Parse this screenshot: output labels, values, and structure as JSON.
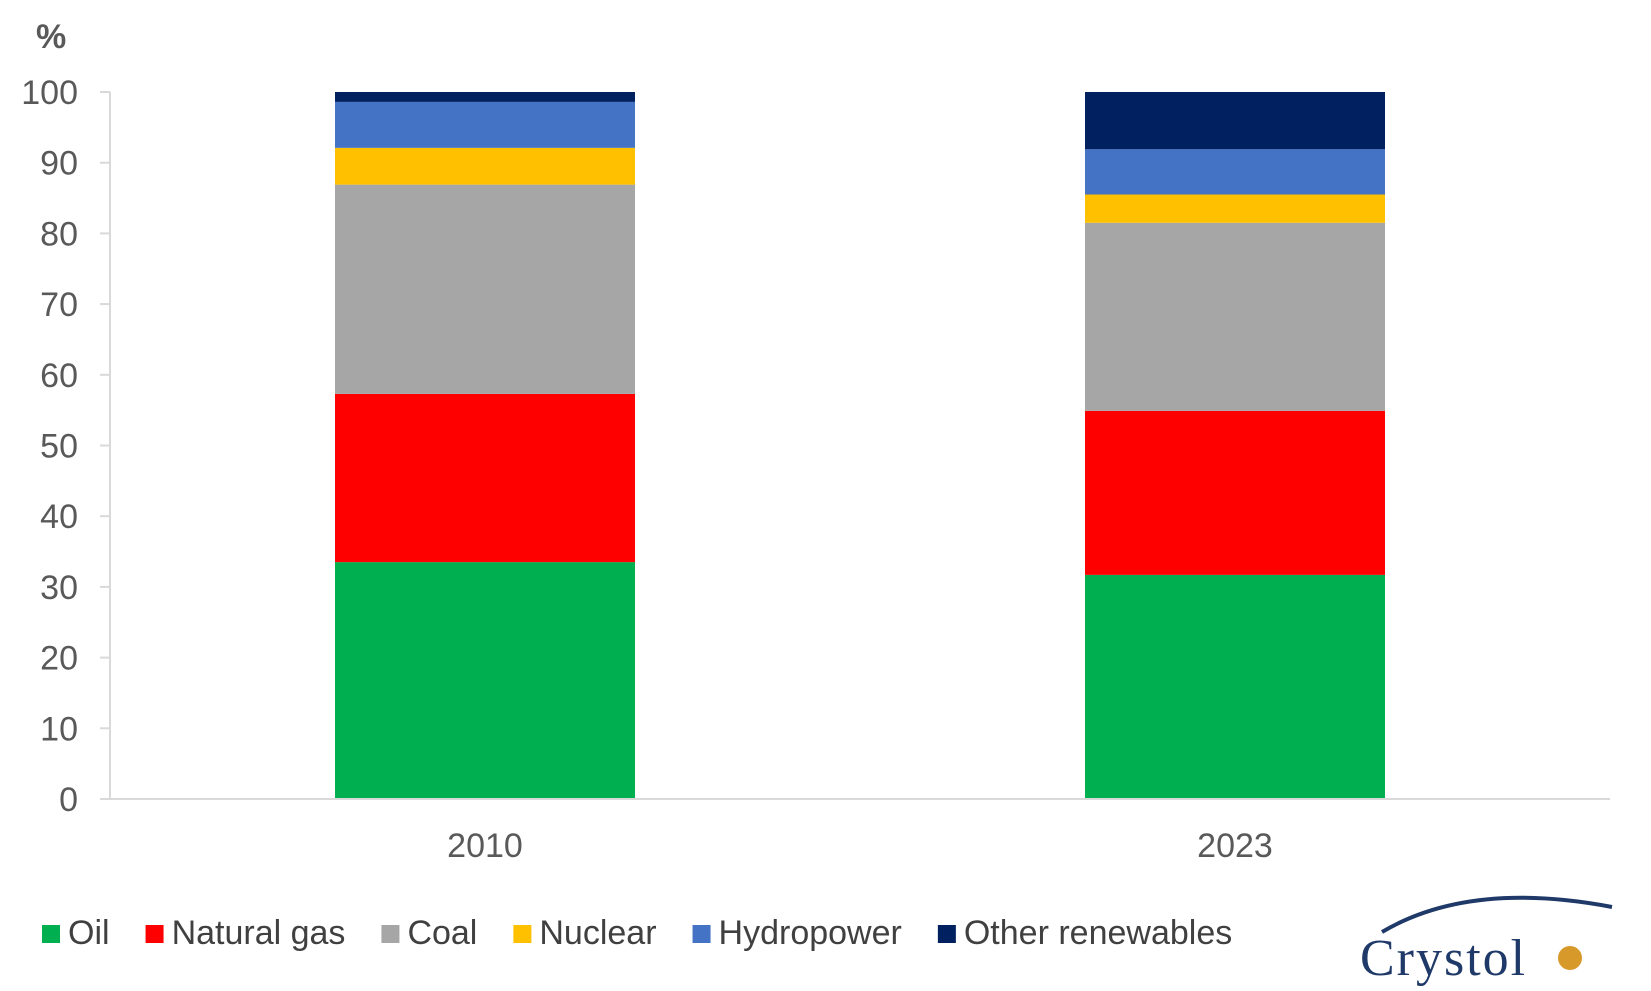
{
  "chart_data": {
    "type": "bar",
    "stacked": true,
    "unit_label": "%",
    "categories": [
      "2010",
      "2023"
    ],
    "ylim": [
      0,
      100
    ],
    "yticks": [
      0,
      10,
      20,
      30,
      40,
      50,
      60,
      70,
      80,
      90,
      100
    ],
    "grid": false,
    "legend_position": "bottom",
    "series": [
      {
        "name": "Oil",
        "color": "#00b050",
        "values": [
          33.5,
          31.7
        ]
      },
      {
        "name": "Natural gas",
        "color": "#ff0000",
        "values": [
          23.8,
          23.2
        ]
      },
      {
        "name": "Coal",
        "color": "#a6a6a6",
        "values": [
          29.6,
          26.6
        ]
      },
      {
        "name": "Nuclear",
        "color": "#ffc000",
        "values": [
          5.2,
          4.0
        ]
      },
      {
        "name": "Hydropower",
        "color": "#4472c4",
        "values": [
          6.5,
          6.4
        ]
      },
      {
        "name": "Other renewables",
        "color": "#002060",
        "values": [
          1.4,
          8.1
        ]
      }
    ]
  },
  "logo": {
    "text": "Crystol"
  }
}
